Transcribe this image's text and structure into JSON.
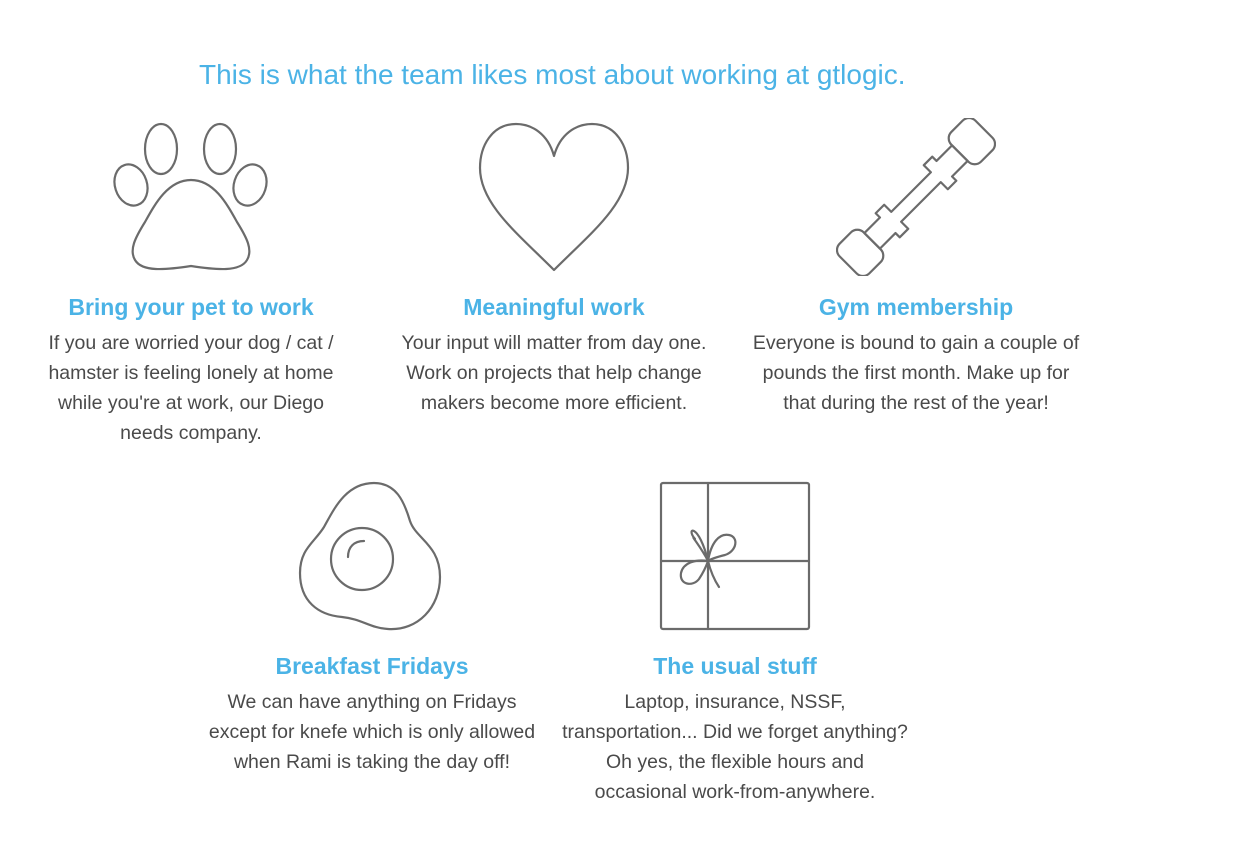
{
  "colors": {
    "accent": "#4bb3e6",
    "body_text": "#4a4a4a",
    "icon_stroke": "#6b6b6b"
  },
  "headline": "This is what the team likes most about working at gtlogic.",
  "perks": [
    {
      "icon": "paw-icon",
      "title": "Bring your pet to work",
      "description": "If you are worried your dog / cat / hamster is feeling lonely at home while you're at work, our Diego needs company."
    },
    {
      "icon": "heart-icon",
      "title": "Meaningful work",
      "description": "Your input will matter from day one. Work on projects that help change makers become more efficient."
    },
    {
      "icon": "dumbbell-icon",
      "title": "Gym membership",
      "description": "Everyone is bound to gain a couple of pounds the first month. Make up for that during the rest of the year!"
    },
    {
      "icon": "fried-egg-icon",
      "title": "Breakfast Fridays",
      "description": "We can have anything on Fridays except for knefe which is only allowed when Rami is taking the day off!"
    },
    {
      "icon": "gift-icon",
      "title": "The usual stuff",
      "description": "Laptop, insurance, NSSF, transportation... Did we forget anything? Oh yes, the flexible hours and occasional work-from-anywhere."
    }
  ]
}
